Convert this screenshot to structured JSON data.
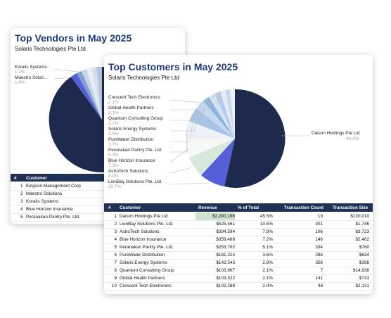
{
  "vendors": {
    "title": "Top Vendors in May 2025",
    "subtitle": "Solaris Technologies Pte Ltd",
    "labels": [
      {
        "name": "Koralis Systems",
        "pct": "1.2%"
      },
      {
        "name": "Maestro Soluti…",
        "pct": "1.6%"
      }
    ],
    "table": {
      "headers": [
        "#",
        "Customer"
      ],
      "rows": [
        {
          "rank": "1",
          "name": "Kingson Management Corp"
        },
        {
          "rank": "2",
          "name": "Maestro Solutions"
        },
        {
          "rank": "3",
          "name": "Koralis Systems"
        },
        {
          "rank": "4",
          "name": "Blue Horizon Insurance"
        },
        {
          "rank": "5",
          "name": "Peranakan Pantry Pte. Ltd."
        }
      ]
    }
  },
  "customers": {
    "title": "Top Customers in May 2025",
    "subtitle": "Solaris Technologies Pte Ltd",
    "big_label": {
      "name": "Daison Holdings Pte Ltd",
      "pct": "46.4%"
    },
    "labels": [
      {
        "name": "Crescent Tech Electronics",
        "pct": "2.1%"
      },
      {
        "name": "Global Health Partners",
        "pct": "2.1%"
      },
      {
        "name": "Quantum Consulting Group",
        "pct": "2.1%"
      },
      {
        "name": "Solaris Energy Systems",
        "pct": "2.9%"
      },
      {
        "name": "PureWater Distribution",
        "pct": "3.7%"
      },
      {
        "name": "Peranakan Pantry Pte. Ltd.",
        "pct": "5.2%"
      },
      {
        "name": "Blue Horizon Insurance",
        "pct": "7.3%"
      },
      {
        "name": "AstroTech Solutions",
        "pct": "8.0%"
      },
      {
        "name": "LionBay Solutions Pte. Ltd.",
        "pct": "10.7%"
      }
    ],
    "table": {
      "headers": [
        "#",
        "Customer",
        "Revenue",
        "% of Total",
        "Transaction Count",
        "Transaction Size"
      ],
      "rows": [
        {
          "rank": "1",
          "name": "Daison Holdings Pte Ltd",
          "revenue": "$2,280,198",
          "share": "45.5%",
          "count": "19",
          "size": "$120,010"
        },
        {
          "rank": "2",
          "name": "LionBay Solutions Pte. Ltd.",
          "revenue": "$525,461",
          "share": "10.5%",
          "count": "301",
          "size": "$1,746"
        },
        {
          "rank": "3",
          "name": "AstroTech Solutions",
          "revenue": "$394,594",
          "share": "7.9%",
          "count": "106",
          "size": "$3,723"
        },
        {
          "rank": "4",
          "name": "Blue Horizon Insurance",
          "revenue": "$359,488",
          "share": "7.2%",
          "count": "146",
          "size": "$2,462"
        },
        {
          "rank": "5",
          "name": "Peranakan Pantry Pte. Ltd.",
          "revenue": "$253,702",
          "share": "5.1%",
          "count": "334",
          "size": "$760"
        },
        {
          "rank": "6",
          "name": "PureWater Distribution",
          "revenue": "$181,224",
          "share": "3.6%",
          "count": "286",
          "size": "$634"
        },
        {
          "rank": "7",
          "name": "Solaris Energy Systems",
          "revenue": "$142,543",
          "share": "2.8%",
          "count": "358",
          "size": "$398"
        },
        {
          "rank": "8",
          "name": "Quantum Consulting Group",
          "revenue": "$103,867",
          "share": "2.1%",
          "count": "7",
          "size": "$14,838"
        },
        {
          "rank": "9",
          "name": "Global Health Partners",
          "revenue": "$103,322",
          "share": "2.1%",
          "count": "141",
          "size": "$733"
        },
        {
          "rank": "10",
          "name": "Crescent Tech Electronics",
          "revenue": "$102,288",
          "share": "2.0%",
          "count": "48",
          "size": "$2,131"
        }
      ]
    }
  },
  "colors": {
    "navy": "#1f3154",
    "title_blue": "#1d3a78",
    "slice_main": "#1e2a4d",
    "slice_second": "#5560d8",
    "revenue_highlight": "#cfe3cf"
  }
}
